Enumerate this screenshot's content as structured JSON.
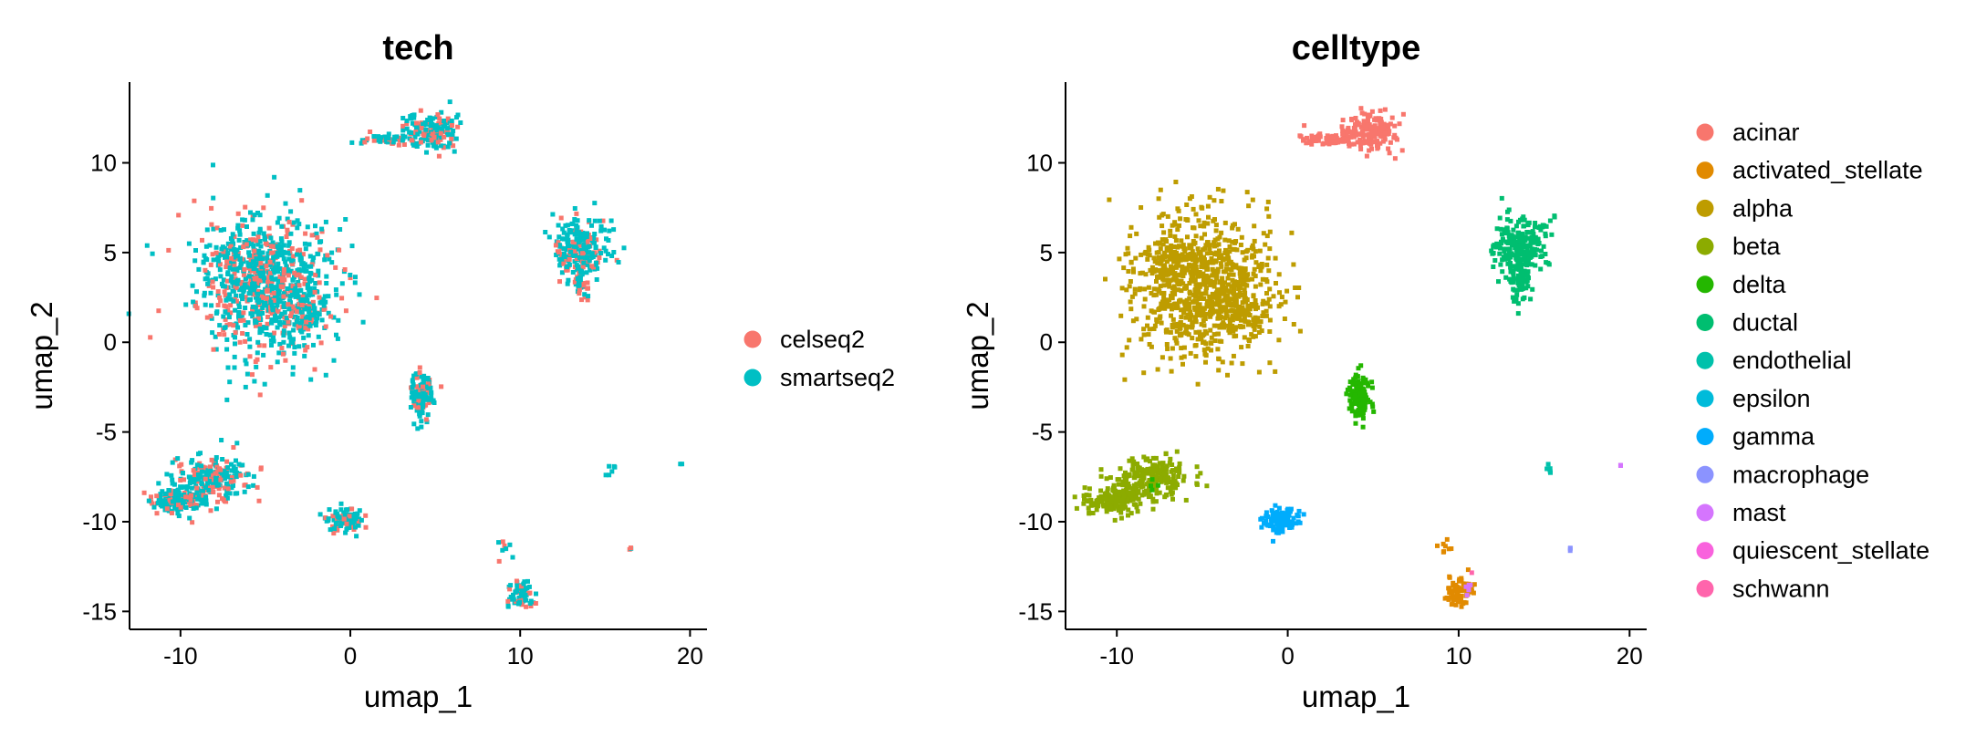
{
  "chart_data": [
    {
      "type": "scatter",
      "title": "tech",
      "xlabel": "umap_1",
      "ylabel": "umap_2",
      "xlim": [
        -13,
        21
      ],
      "ylim": [
        -16,
        14.5
      ],
      "xticks": [
        -10,
        0,
        10,
        20
      ],
      "yticks": [
        -15,
        -10,
        -5,
        0,
        5,
        10
      ],
      "grid": false,
      "legend_position": "right",
      "legend": [
        {
          "name": "celseq2",
          "color": "#F8766D"
        },
        {
          "name": "smartseq2",
          "color": "#00BFC4"
        }
      ],
      "points": [
        {
          "x": -5.0,
          "y": 3.2,
          "sx": 2.0,
          "sy": 1.9,
          "n": 900,
          "group": "mix"
        },
        {
          "x": -2.6,
          "y": 1.5,
          "sx": 0.7,
          "sy": 0.5,
          "n": 80,
          "group": "mix"
        },
        {
          "x": -6.8,
          "y": 4.8,
          "sx": 0.7,
          "sy": 0.6,
          "n": 60,
          "group": "mix"
        },
        {
          "x": 4.8,
          "y": 11.7,
          "sx": 0.8,
          "sy": 0.5,
          "n": 160,
          "group": "mix"
        },
        {
          "x": 2.2,
          "y": 11.3,
          "sx": 0.7,
          "sy": 0.15,
          "n": 50,
          "group": "mix"
        },
        {
          "x": 13.6,
          "y": 5.2,
          "sx": 0.8,
          "sy": 0.9,
          "n": 240,
          "group": "mix"
        },
        {
          "x": 13.6,
          "y": 3.2,
          "sx": 0.25,
          "sy": 0.6,
          "n": 40,
          "group": "mix"
        },
        {
          "x": 4.2,
          "y": -3.0,
          "sx": 0.3,
          "sy": 0.65,
          "n": 130,
          "group": "mix"
        },
        {
          "x": -8.0,
          "y": -7.6,
          "sx": 1.1,
          "sy": 0.6,
          "n": 230,
          "group": "mix"
        },
        {
          "x": -10.2,
          "y": -8.8,
          "sx": 0.8,
          "sy": 0.4,
          "n": 150,
          "group": "mix"
        },
        {
          "x": -0.3,
          "y": -9.9,
          "sx": 0.5,
          "sy": 0.35,
          "n": 110,
          "group": "mix"
        },
        {
          "x": 10.0,
          "y": -14.0,
          "sx": 0.4,
          "sy": 0.4,
          "n": 70,
          "group": "mix"
        },
        {
          "x": 9.1,
          "y": -11.5,
          "sx": 0.25,
          "sy": 0.3,
          "n": 8,
          "group": "mix"
        },
        {
          "x": 15.3,
          "y": -7.1,
          "sx": 0.2,
          "sy": 0.2,
          "n": 6,
          "group": "mix"
        },
        {
          "x": 16.5,
          "y": -11.5,
          "sx": 0.05,
          "sy": 0.1,
          "n": 3,
          "group": "mix"
        },
        {
          "x": 19.5,
          "y": -6.8,
          "sx": 0.05,
          "sy": 0.05,
          "n": 2,
          "group": "mix"
        }
      ]
    },
    {
      "type": "scatter",
      "title": "celltype",
      "xlabel": "umap_1",
      "ylabel": "umap_2",
      "xlim": [
        -13,
        21
      ],
      "ylim": [
        -16,
        14.5
      ],
      "xticks": [
        -10,
        0,
        10,
        20
      ],
      "yticks": [
        -15,
        -10,
        -5,
        0,
        5,
        10
      ],
      "grid": false,
      "legend_position": "right",
      "legend": [
        {
          "name": "acinar",
          "color": "#F8766D"
        },
        {
          "name": "activated_stellate",
          "color": "#E18A00"
        },
        {
          "name": "alpha",
          "color": "#BE9C00"
        },
        {
          "name": "beta",
          "color": "#8CAB00"
        },
        {
          "name": "delta",
          "color": "#24B700"
        },
        {
          "name": "ductal",
          "color": "#00BE70"
        },
        {
          "name": "endothelial",
          "color": "#00C1AB"
        },
        {
          "name": "epsilon",
          "color": "#00BBDA"
        },
        {
          "name": "gamma",
          "color": "#00ACFC"
        },
        {
          "name": "macrophage",
          "color": "#8B93FF"
        },
        {
          "name": "mast",
          "color": "#D575FE"
        },
        {
          "name": "quiescent_stellate",
          "color": "#F962DD"
        },
        {
          "name": "schwann",
          "color": "#FF65AC"
        }
      ],
      "points": [
        {
          "x": -5.0,
          "y": 3.2,
          "sx": 2.0,
          "sy": 1.9,
          "n": 900,
          "group": "alpha"
        },
        {
          "x": -2.6,
          "y": 1.5,
          "sx": 0.7,
          "sy": 0.5,
          "n": 80,
          "group": "alpha"
        },
        {
          "x": -6.8,
          "y": 4.8,
          "sx": 0.7,
          "sy": 0.6,
          "n": 60,
          "group": "alpha"
        },
        {
          "x": 4.8,
          "y": 11.7,
          "sx": 0.8,
          "sy": 0.5,
          "n": 160,
          "group": "acinar"
        },
        {
          "x": 2.2,
          "y": 11.3,
          "sx": 0.7,
          "sy": 0.15,
          "n": 50,
          "group": "acinar"
        },
        {
          "x": 13.6,
          "y": 5.2,
          "sx": 0.8,
          "sy": 0.9,
          "n": 240,
          "group": "ductal"
        },
        {
          "x": 13.6,
          "y": 3.2,
          "sx": 0.25,
          "sy": 0.6,
          "n": 40,
          "group": "ductal"
        },
        {
          "x": 4.2,
          "y": -3.0,
          "sx": 0.3,
          "sy": 0.65,
          "n": 130,
          "group": "delta"
        },
        {
          "x": -8.0,
          "y": -7.6,
          "sx": 1.1,
          "sy": 0.6,
          "n": 230,
          "group": "beta"
        },
        {
          "x": -10.2,
          "y": -8.8,
          "sx": 0.8,
          "sy": 0.4,
          "n": 150,
          "group": "beta"
        },
        {
          "x": -0.3,
          "y": -9.9,
          "sx": 0.5,
          "sy": 0.35,
          "n": 110,
          "group": "gamma"
        },
        {
          "x": 10.0,
          "y": -14.0,
          "sx": 0.4,
          "sy": 0.4,
          "n": 70,
          "group": "activated_stellate"
        },
        {
          "x": 10.5,
          "y": -13.8,
          "sx": 0.15,
          "sy": 0.15,
          "n": 6,
          "group": "mast"
        },
        {
          "x": 9.1,
          "y": -11.5,
          "sx": 0.25,
          "sy": 0.3,
          "n": 8,
          "group": "activated_stellate"
        },
        {
          "x": 15.3,
          "y": -7.1,
          "sx": 0.2,
          "sy": 0.2,
          "n": 6,
          "group": "endothelial"
        },
        {
          "x": 16.5,
          "y": -11.5,
          "sx": 0.05,
          "sy": 0.1,
          "n": 3,
          "group": "macrophage"
        },
        {
          "x": 19.5,
          "y": -6.8,
          "sx": 0.05,
          "sy": 0.05,
          "n": 2,
          "group": "mast"
        },
        {
          "x": 10.8,
          "y": -12.8,
          "sx": 0.05,
          "sy": 0.05,
          "n": 1,
          "group": "schwann"
        },
        {
          "x": -8.0,
          "y": -8.0,
          "sx": 0.2,
          "sy": 0.2,
          "n": 4,
          "group": "delta"
        }
      ]
    }
  ]
}
